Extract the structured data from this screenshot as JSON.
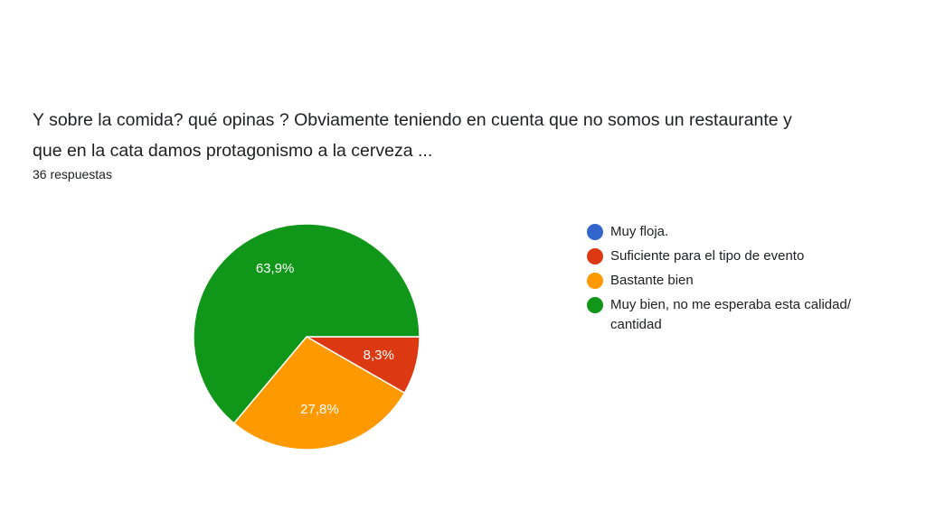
{
  "question": {
    "text": "Y sobre la comida? qué opinas ? Obviamente teniendo en cuenta que no somos un restaurante y\nque en la cata damos protagonismo a la cerveza ...",
    "responses": "36 respuestas"
  },
  "chart_data": {
    "type": "pie",
    "title": "Y sobre la comida? qué opinas ? Obviamente teniendo en cuenta que no somos un restaurante y que en la cata damos protagonismo a la cerveza ...",
    "legend_position": "right",
    "slices": [
      {
        "label": "Muy floja.",
        "value": 0,
        "percent_label": "",
        "color": "#3366cc"
      },
      {
        "label": "Suficiente para el tipo de evento",
        "value": 8.3,
        "percent_label": "8,3%",
        "color": "#dc3912"
      },
      {
        "label": "Bastante bien",
        "value": 27.8,
        "percent_label": "27,8%",
        "color": "#ff9900"
      },
      {
        "label": "Muy bien, no me esperaba esta calidad/ cantidad",
        "value": 63.9,
        "percent_label": "63,9%",
        "color": "#109618"
      }
    ]
  }
}
